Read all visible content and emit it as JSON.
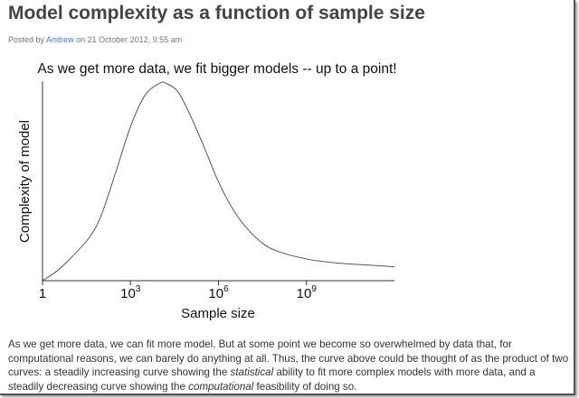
{
  "post": {
    "title": "Model complexity as a function of sample size",
    "posted_by": "Posted by",
    "author": "Andrew",
    "date_text": "on 21 October 2012, 9:55 am"
  },
  "chart_data": {
    "type": "line",
    "title": "As we get more data, we fit bigger models -- up to a point!",
    "xlabel": "Sample size",
    "ylabel": "Complexity of model",
    "xscale": "log10",
    "xlim": [
      0,
      12
    ],
    "ylim": [
      0,
      1.01
    ],
    "xticks": [
      {
        "value": 0,
        "label": "1",
        "base": "",
        "exp": ""
      },
      {
        "value": 3,
        "label": "",
        "base": "10",
        "exp": "3"
      },
      {
        "value": 6,
        "label": "",
        "base": "10",
        "exp": "6"
      },
      {
        "value": 9,
        "label": "",
        "base": "10",
        "exp": "9"
      }
    ],
    "series": [
      {
        "name": "complexity",
        "color": "#555555",
        "x": [
          0,
          0.5,
          1,
          1.6,
          2,
          2.5,
          3,
          3.5,
          4,
          4.2,
          4.6,
          5,
          5.5,
          6,
          6.5,
          7,
          7.5,
          8,
          9,
          10,
          11,
          12
        ],
        "y": [
          0,
          0.05,
          0.12,
          0.22,
          0.33,
          0.55,
          0.78,
          0.94,
          1.0,
          1.0,
          0.96,
          0.85,
          0.68,
          0.5,
          0.36,
          0.26,
          0.19,
          0.15,
          0.11,
          0.09,
          0.08,
          0.07
        ]
      }
    ]
  },
  "body": {
    "p1": "As we get more data, we can fit more model. But at some point we become so overwhelmed by data that, for computational reasons, we can barely do anything at all. Thus, the curve above could be thought of as the product of two curves: a steadily increasing curve showing the ",
    "em1": "statistical",
    "p2": " ability to fit more complex models with more data, and a steadily decreasing curve showing the ",
    "em2": "computational",
    "p3": " feasibility of doing so."
  }
}
